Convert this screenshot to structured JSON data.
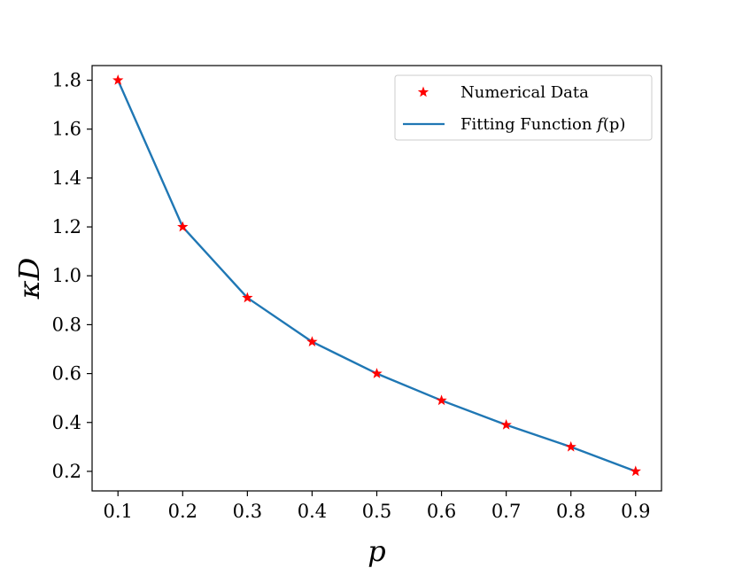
{
  "chart_data": {
    "type": "line",
    "x": [
      0.1,
      0.2,
      0.3,
      0.4,
      0.5,
      0.6,
      0.7,
      0.8,
      0.9
    ],
    "series": [
      {
        "name": "Numerical Data",
        "kind": "scatter",
        "marker": "star",
        "color": "#ff0000",
        "values": [
          1.8,
          1.2,
          0.91,
          0.73,
          0.6,
          0.49,
          0.39,
          0.3,
          0.2
        ]
      },
      {
        "name": "Fitting Function f(p)",
        "kind": "line",
        "color": "#1f77b4",
        "values": [
          1.8,
          1.2,
          0.91,
          0.73,
          0.6,
          0.49,
          0.39,
          0.3,
          0.2
        ]
      }
    ],
    "xlabel": "p",
    "ylabel": "κD",
    "xlim": [
      0.06,
      0.94
    ],
    "ylim": [
      0.12,
      1.86
    ],
    "xticks": [
      "0.1",
      "0.2",
      "0.3",
      "0.4",
      "0.5",
      "0.6",
      "0.7",
      "0.8",
      "0.9"
    ],
    "xtick_values": [
      0.1,
      0.2,
      0.3,
      0.4,
      0.5,
      0.6,
      0.7,
      0.8,
      0.9
    ],
    "yticks": [
      "0.2",
      "0.4",
      "0.6",
      "0.8",
      "1.0",
      "1.2",
      "1.4",
      "1.6",
      "1.8"
    ],
    "ytick_values": [
      0.2,
      0.4,
      0.6,
      0.8,
      1.0,
      1.2,
      1.4,
      1.6,
      1.8
    ],
    "legend": {
      "position": "top-right",
      "entries": [
        "Numerical Data",
        "Fitting Function f(p)"
      ],
      "labels": {
        "scatter": "Numerical Data",
        "line_prefix": "Fitting Function ",
        "line_func": "f",
        "line_arg": "(p)"
      }
    },
    "grid": false
  }
}
